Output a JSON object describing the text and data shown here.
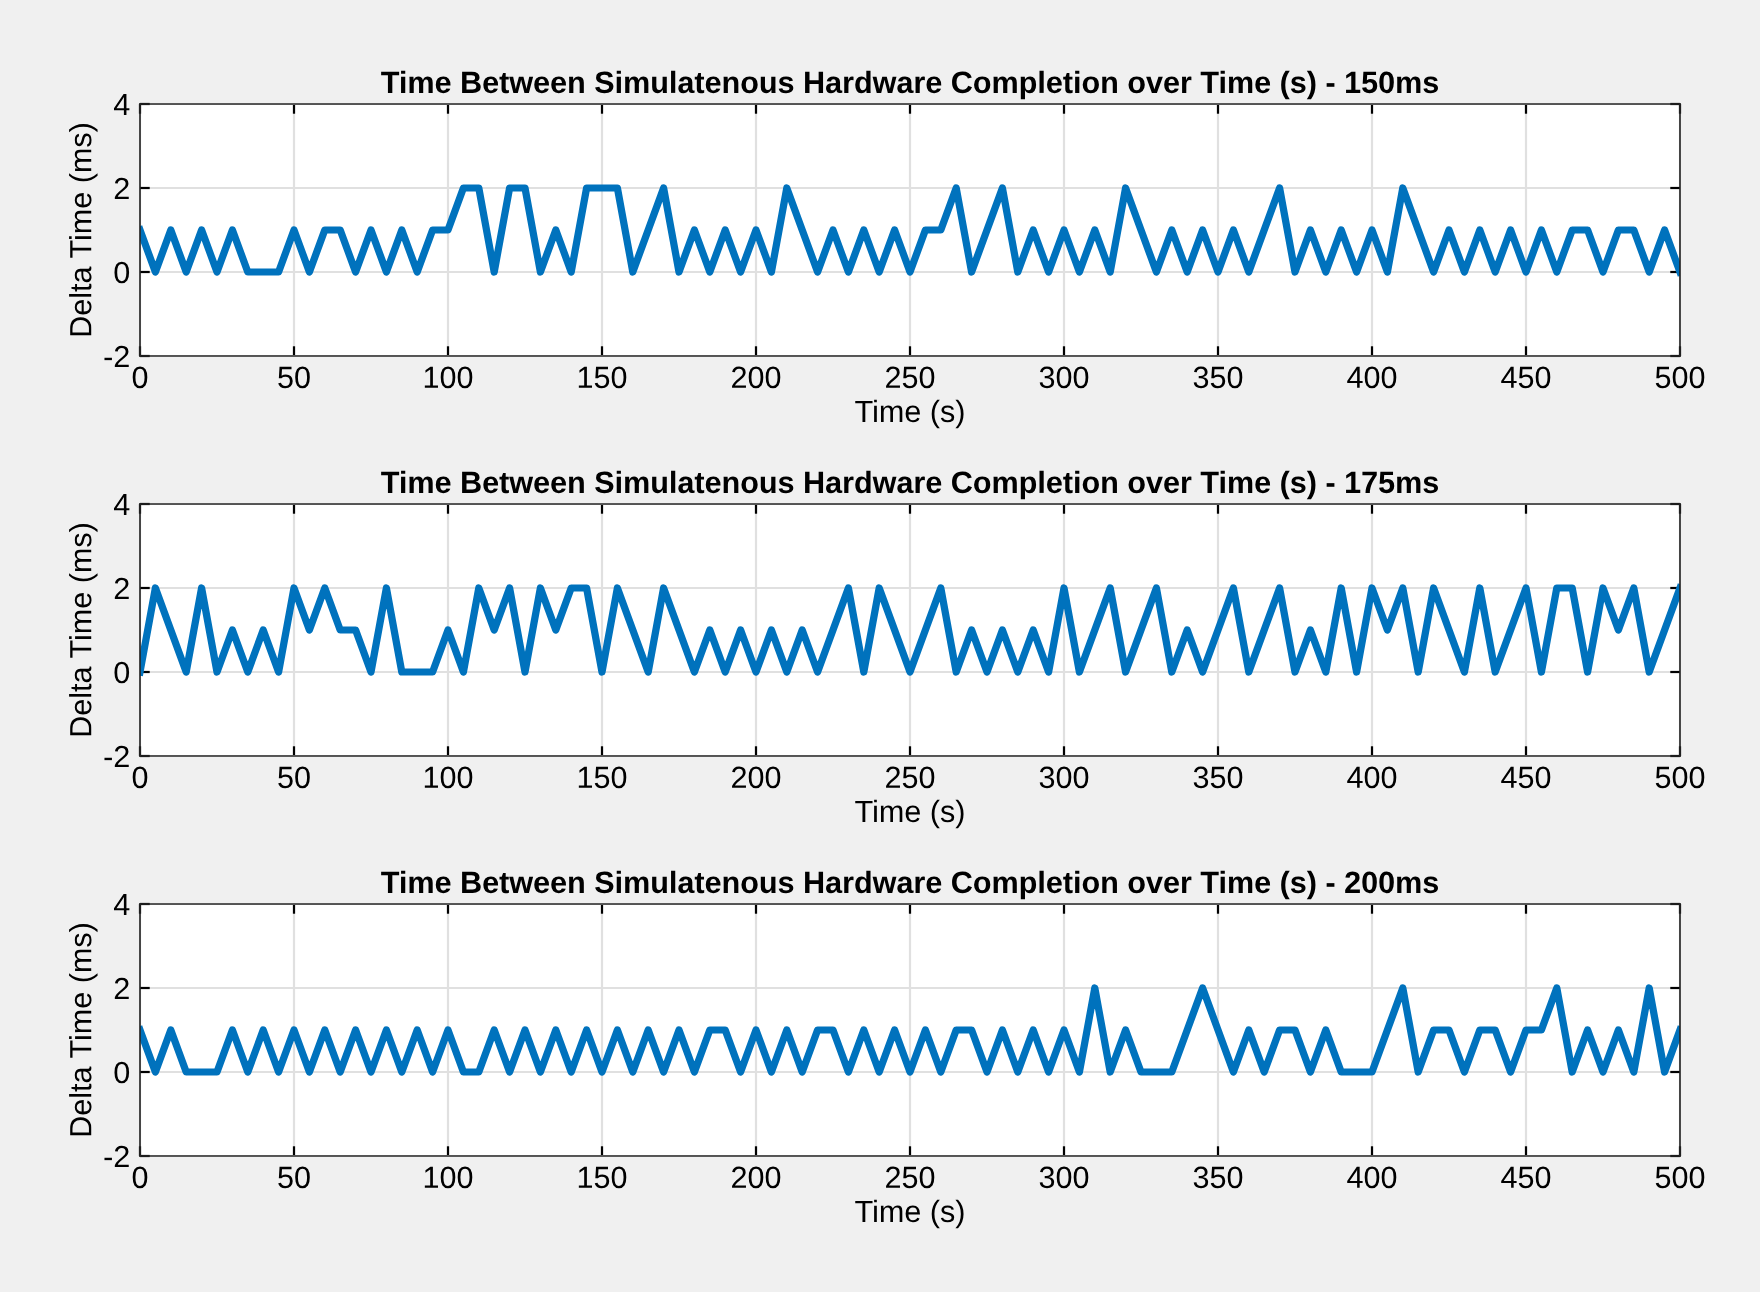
{
  "chart_data": [
    {
      "type": "line",
      "title": "Time Between Simulatenous Hardware Completion over Time (s) - 150ms",
      "xlabel": "Time (s)",
      "ylabel": "Delta Time (ms)",
      "xlim": [
        0,
        500
      ],
      "xticks": [
        0,
        50,
        100,
        150,
        200,
        250,
        300,
        350,
        400,
        450,
        500
      ],
      "ylim": [
        -2,
        4
      ],
      "yticks": [
        -2,
        0,
        2,
        4
      ],
      "grid": true,
      "x": [
        0,
        5,
        10,
        15,
        20,
        25,
        30,
        35,
        40,
        45,
        50,
        55,
        60,
        65,
        70,
        75,
        80,
        85,
        90,
        95,
        100,
        105,
        110,
        115,
        120,
        125,
        130,
        135,
        140,
        145,
        150,
        155,
        160,
        165,
        170,
        175,
        180,
        185,
        190,
        195,
        200,
        205,
        210,
        215,
        220,
        225,
        230,
        235,
        240,
        245,
        250,
        255,
        260,
        265,
        270,
        275,
        280,
        285,
        290,
        295,
        300,
        305,
        310,
        315,
        320,
        325,
        330,
        335,
        340,
        345,
        350,
        355,
        360,
        365,
        370,
        375,
        380,
        385,
        390,
        395,
        400,
        405,
        410,
        415,
        420,
        425,
        430,
        435,
        440,
        445,
        450,
        455,
        460,
        465,
        470,
        475,
        480,
        485,
        490,
        495,
        500
      ],
      "series": [
        {
          "color": "#0072bd",
          "values": [
            1,
            0,
            1,
            0,
            1,
            0,
            1,
            0,
            0,
            0,
            1,
            0,
            1,
            1,
            0,
            1,
            0,
            1,
            0,
            1,
            1,
            2,
            2,
            0,
            2,
            2,
            0,
            1,
            0,
            2,
            2,
            2,
            0,
            1,
            2,
            0,
            1,
            0,
            1,
            0,
            1,
            0,
            2,
            1,
            0,
            1,
            0,
            1,
            0,
            1,
            0,
            1,
            1,
            2,
            0,
            1,
            2,
            0,
            1,
            0,
            1,
            0,
            1,
            0,
            2,
            1,
            0,
            1,
            0,
            1,
            0,
            1,
            0,
            1,
            2,
            0,
            1,
            0,
            1,
            0,
            1,
            0,
            2,
            1,
            0,
            1,
            0,
            1,
            0,
            1,
            0,
            1,
            0,
            1,
            1,
            0,
            1,
            1,
            0,
            1,
            0
          ]
        }
      ]
    },
    {
      "type": "line",
      "title": "Time Between Simulatenous Hardware Completion over Time (s) - 175ms",
      "xlabel": "Time (s)",
      "ylabel": "Delta Time (ms)",
      "xlim": [
        0,
        500
      ],
      "xticks": [
        0,
        50,
        100,
        150,
        200,
        250,
        300,
        350,
        400,
        450,
        500
      ],
      "ylim": [
        -2,
        4
      ],
      "yticks": [
        -2,
        0,
        2,
        4
      ],
      "grid": true,
      "x": [
        0,
        5,
        10,
        15,
        20,
        25,
        30,
        35,
        40,
        45,
        50,
        55,
        60,
        65,
        70,
        75,
        80,
        85,
        90,
        95,
        100,
        105,
        110,
        115,
        120,
        125,
        130,
        135,
        140,
        145,
        150,
        155,
        160,
        165,
        170,
        175,
        180,
        185,
        190,
        195,
        200,
        205,
        210,
        215,
        220,
        225,
        230,
        235,
        240,
        245,
        250,
        255,
        260,
        265,
        270,
        275,
        280,
        285,
        290,
        295,
        300,
        305,
        310,
        315,
        320,
        325,
        330,
        335,
        340,
        345,
        350,
        355,
        360,
        365,
        370,
        375,
        380,
        385,
        390,
        395,
        400,
        405,
        410,
        415,
        420,
        425,
        430,
        435,
        440,
        445,
        450,
        455,
        460,
        465,
        470,
        475,
        480,
        485,
        490,
        495,
        500
      ],
      "series": [
        {
          "color": "#0072bd",
          "values": [
            0,
            2,
            1,
            0,
            2,
            0,
            1,
            0,
            1,
            0,
            2,
            1,
            2,
            1,
            1,
            0,
            2,
            0,
            0,
            0,
            1,
            0,
            2,
            1,
            2,
            0,
            2,
            1,
            2,
            2,
            0,
            2,
            1,
            0,
            2,
            1,
            0,
            1,
            0,
            1,
            0,
            1,
            0,
            1,
            0,
            1,
            2,
            0,
            2,
            1,
            0,
            1,
            2,
            0,
            1,
            0,
            1,
            0,
            1,
            0,
            2,
            0,
            1,
            2,
            0,
            1,
            2,
            0,
            1,
            0,
            1,
            2,
            0,
            1,
            2,
            0,
            1,
            0,
            2,
            0,
            2,
            1,
            2,
            0,
            2,
            1,
            0,
            2,
            0,
            1,
            2,
            0,
            2,
            2,
            0,
            2,
            1,
            2,
            0,
            1,
            2
          ]
        }
      ]
    },
    {
      "type": "line",
      "title": "Time Between Simulatenous Hardware Completion over Time (s) - 200ms",
      "xlabel": "Time (s)",
      "ylabel": "Delta Time (ms)",
      "xlim": [
        0,
        500
      ],
      "xticks": [
        0,
        50,
        100,
        150,
        200,
        250,
        300,
        350,
        400,
        450,
        500
      ],
      "ylim": [
        -2,
        4
      ],
      "yticks": [
        -2,
        0,
        2,
        4
      ],
      "grid": true,
      "x": [
        0,
        5,
        10,
        15,
        20,
        25,
        30,
        35,
        40,
        45,
        50,
        55,
        60,
        65,
        70,
        75,
        80,
        85,
        90,
        95,
        100,
        105,
        110,
        115,
        120,
        125,
        130,
        135,
        140,
        145,
        150,
        155,
        160,
        165,
        170,
        175,
        180,
        185,
        190,
        195,
        200,
        205,
        210,
        215,
        220,
        225,
        230,
        235,
        240,
        245,
        250,
        255,
        260,
        265,
        270,
        275,
        280,
        285,
        290,
        295,
        300,
        305,
        310,
        315,
        320,
        325,
        330,
        335,
        340,
        345,
        350,
        355,
        360,
        365,
        370,
        375,
        380,
        385,
        390,
        395,
        400,
        405,
        410,
        415,
        420,
        425,
        430,
        435,
        440,
        445,
        450,
        455,
        460,
        465,
        470,
        475,
        480,
        485,
        490,
        495,
        500
      ],
      "series": [
        {
          "color": "#0072bd",
          "values": [
            1,
            0,
            1,
            0,
            0,
            0,
            1,
            0,
            1,
            0,
            1,
            0,
            1,
            0,
            1,
            0,
            1,
            0,
            1,
            0,
            1,
            0,
            0,
            1,
            0,
            1,
            0,
            1,
            0,
            1,
            0,
            1,
            0,
            1,
            0,
            1,
            0,
            1,
            1,
            0,
            1,
            0,
            1,
            0,
            1,
            1,
            0,
            1,
            0,
            1,
            0,
            1,
            0,
            1,
            1,
            0,
            1,
            0,
            1,
            0,
            1,
            0,
            2,
            0,
            1,
            0,
            0,
            0,
            1,
            2,
            1,
            0,
            1,
            0,
            1,
            1,
            0,
            1,
            0,
            0,
            0,
            1,
            2,
            0,
            1,
            1,
            0,
            1,
            1,
            0,
            1,
            1,
            2,
            0,
            1,
            0,
            1,
            0,
            2,
            0,
            1
          ]
        }
      ]
    }
  ]
}
